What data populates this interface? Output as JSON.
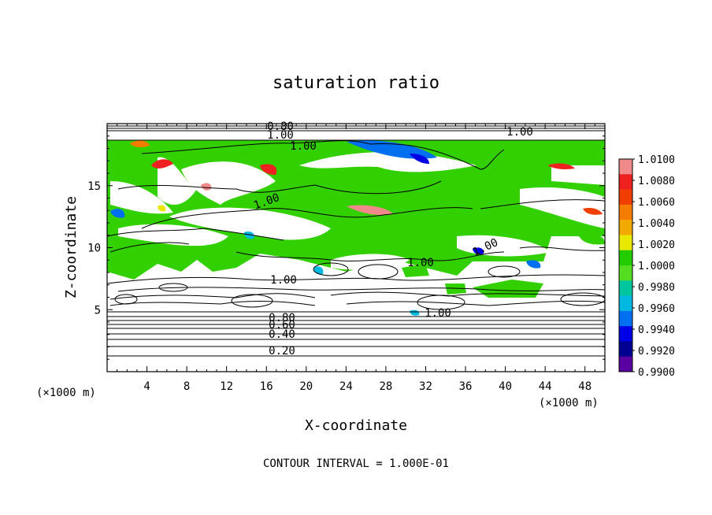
{
  "chart_data": {
    "type": "heatmap",
    "title": "saturation ratio",
    "xlabel": "X-coordinate",
    "ylabel": "Z-coordinate",
    "x_unit": "(×1000 m)",
    "xlim": [
      0,
      50
    ],
    "ylim": [
      0,
      20
    ],
    "x_ticks": [
      "4",
      "8",
      "12",
      "16",
      "20",
      "24",
      "28",
      "32",
      "36",
      "40",
      "44",
      "48"
    ],
    "y_ticks": [
      "5",
      "10",
      "15"
    ],
    "footer": "CONTOUR INTERVAL = 1.000E-01",
    "colorbar": {
      "labels": [
        "1.0100",
        "1.0080",
        "1.0060",
        "1.0040",
        "1.0020",
        "1.0000",
        "0.9980",
        "0.9960",
        "0.9940",
        "0.9920",
        "0.9900"
      ],
      "colors": [
        "#f08a8a",
        "#ee2020",
        "#f03d00",
        "#f47c00",
        "#f2a900",
        "#e8e800",
        "#22cc00",
        "#55dd22",
        "#00c6a0",
        "#00b8e0",
        "#0070f0",
        "#0000e6",
        "#000090",
        "#5a00a0"
      ]
    },
    "contour_labels": [
      "0.80",
      "1.00",
      "1.00",
      "1.00",
      "1.00",
      "1.00",
      "1.00",
      "1.00",
      "1.00",
      "0.80",
      "0.60",
      "0.40",
      "0.20"
    ]
  },
  "icons": {
    "colorbar": "colorbar-legend"
  }
}
